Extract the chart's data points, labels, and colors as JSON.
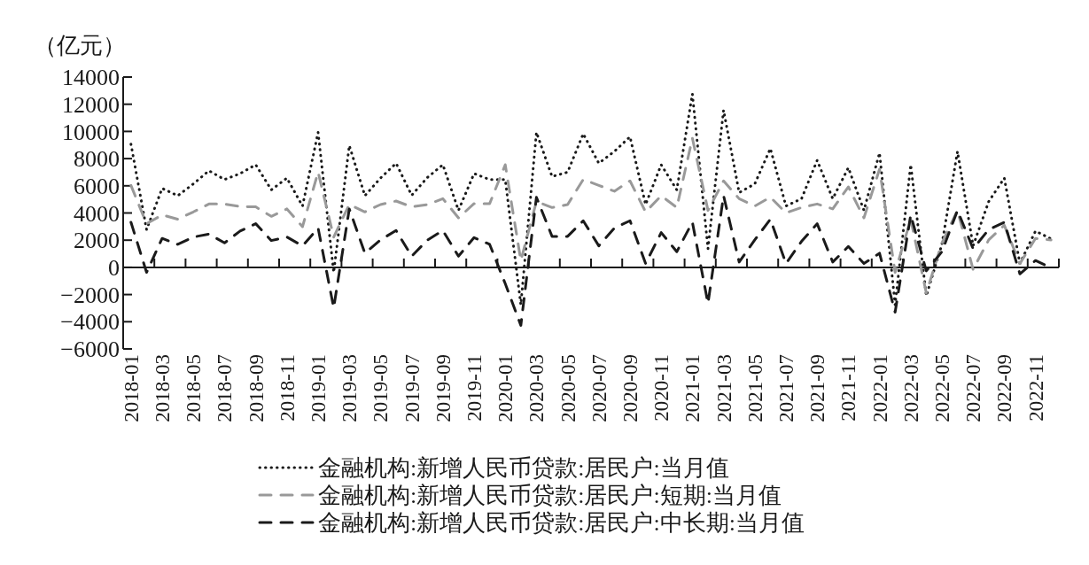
{
  "chart_data": {
    "type": "line",
    "ylabel": "（亿元）",
    "categories": [
      "2018-01",
      null,
      "2018-03",
      null,
      "2018-05",
      null,
      "2018-07",
      null,
      "2018-09",
      null,
      "2018-11",
      null,
      "2019-01",
      null,
      "2019-03",
      null,
      "2019-05",
      null,
      "2019-07",
      null,
      "2019-09",
      null,
      "2019-11",
      null,
      "2020-01",
      null,
      "2020-03",
      null,
      "2020-05",
      null,
      "2020-07",
      null,
      "2020-09",
      null,
      "2020-11",
      null,
      "2021-01",
      null,
      "2021-03",
      null,
      "2021-05",
      null,
      "2021-07",
      null,
      "2021-09",
      null,
      "2021-11",
      null,
      "2022-01",
      null,
      "2022-03",
      null,
      "2022-05",
      null,
      "2022-07",
      null,
      "2022-09",
      null,
      "2022-11",
      null
    ],
    "series": [
      {
        "name": "金融机构:新增人民币贷款:居民户:当月值",
        "color": "#1a1a1a",
        "line_style": "dotted",
        "values": [
          9070,
          2780,
          5810,
          5270,
          6140,
          7110,
          6460,
          6900,
          7550,
          5700,
          6570,
          4510,
          9930,
          -370,
          8960,
          5270,
          6570,
          7660,
          5300,
          6600,
          7550,
          4190,
          6900,
          6460,
          6460,
          -2750,
          9930,
          6680,
          7000,
          9830,
          7660,
          8530,
          9610,
          4620,
          7550,
          5700,
          12750,
          1370,
          11560,
          5500,
          6140,
          8740,
          4510,
          5050,
          7870,
          5050,
          7330,
          4190,
          8420,
          -2750,
          7550,
          -2100,
          1690,
          8530,
          1580,
          4840,
          6570,
          280,
          2670,
          2100
        ]
      },
      {
        "name": "金融机构:新增人民币贷款:居民户:短期:当月值",
        "color": "#999999",
        "line_style": "dashed",
        "values": [
          6030,
          3210,
          3860,
          3540,
          4080,
          4660,
          4660,
          4470,
          4450,
          3750,
          4300,
          2990,
          7010,
          2230,
          4620,
          4080,
          4620,
          4880,
          4450,
          4620,
          5050,
          3640,
          4690,
          4690,
          7550,
          500,
          4840,
          4400,
          4620,
          6460,
          6030,
          5600,
          6360,
          4080,
          5270,
          4400,
          9500,
          4190,
          6360,
          5050,
          4510,
          5160,
          4010,
          4400,
          4660,
          4300,
          5920,
          3640,
          7220,
          -370,
          3540,
          -1890,
          1800,
          4190,
          -150,
          2020,
          3100,
          280,
          2130,
          2020
        ]
      },
      {
        "name": "金融机构:新增人民币贷款:居民户:中长期:当月值",
        "color": "#1a1a1a",
        "line_style": "dashed",
        "values": [
          3320,
          -370,
          2130,
          1690,
          2230,
          2450,
          1800,
          2670,
          3210,
          1970,
          2230,
          1580,
          2890,
          -2970,
          4300,
          1040,
          2020,
          2710,
          820,
          2000,
          2710,
          820,
          2190,
          1690,
          -1200,
          -4270,
          5160,
          2280,
          2280,
          3430,
          1580,
          2890,
          3430,
          280,
          2560,
          1150,
          3320,
          -2650,
          5270,
          390,
          2020,
          3540,
          280,
          1910,
          3210,
          390,
          1540,
          280,
          1040,
          -3300,
          3860,
          -260,
          1150,
          4190,
          1370,
          2780,
          3320,
          -480,
          500,
          -40
        ]
      }
    ],
    "ylim": [
      -6000,
      14000
    ],
    "yticks": [
      -6000,
      -4000,
      -2000,
      0,
      2000,
      4000,
      6000,
      8000,
      10000,
      12000,
      14000
    ],
    "legend": "bottom"
  }
}
